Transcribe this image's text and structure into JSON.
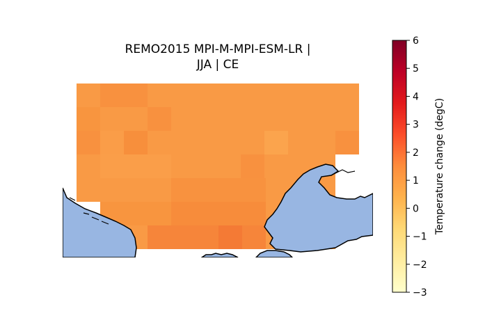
{
  "figure": {
    "title_line1": "REMO2015 MPI-M-MPI-ESM-LR |",
    "title_line2": "JJA | CE"
  },
  "colorbar": {
    "label": "Temperature change (degC)",
    "min": -3,
    "max": 6,
    "ticks": [
      "6",
      "5",
      "4",
      "3",
      "2",
      "1",
      "0",
      "−1",
      "−2",
      "−3"
    ],
    "colormap": "YlOrRd",
    "colors": [
      "#ffffcc",
      "#ffeda0",
      "#fed976",
      "#feb24c",
      "#fd8d3c",
      "#fc4e2a",
      "#e31a1c",
      "#bd0026",
      "#800026"
    ]
  },
  "map": {
    "sea_color": "#98b6e2",
    "coastline_color": "#000000"
  }
}
